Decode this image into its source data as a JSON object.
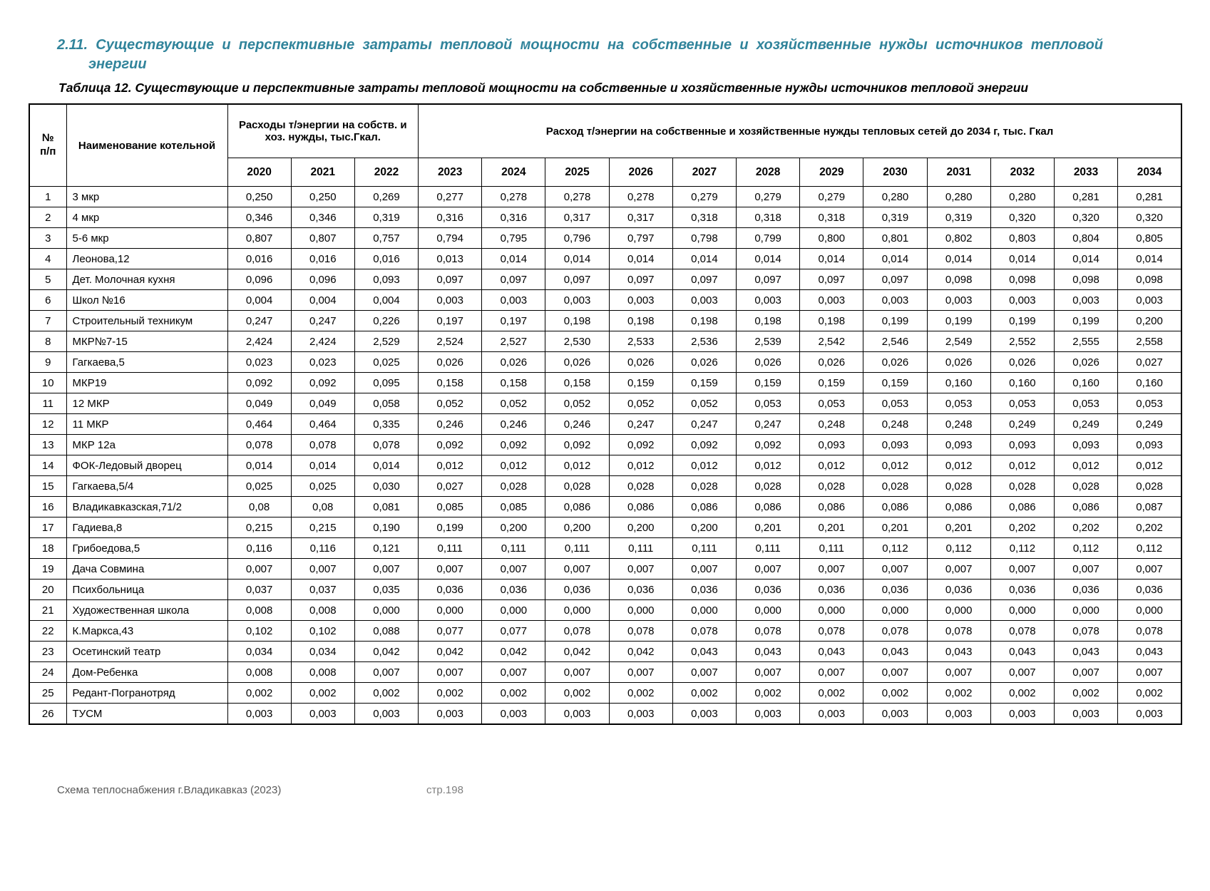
{
  "page": {
    "section_title": "2.11. Существующие и перспективные затраты тепловой мощности на собственные и хозяйственные нужды источников тепловой энергии",
    "table_caption": "Таблица 12. Существующие и перспективные затраты тепловой мощности на собственные и хозяйственные нужды источников тепловой энергии",
    "footer_left": "Схема теплоснабжения г.Владикавказ (2023)",
    "footer_page": "стр.198"
  },
  "table": {
    "col_num_header": "№\nп/п",
    "col_name_header": "Наименование котельной",
    "group1_header": "Расходы т/энергии на собств. и хоз. нужды, тыс.Гкал.",
    "group2_header": "Расход т/энергии на собственные и хозяйственные нужды тепловых сетей до 2034 г, тыс. Гкал",
    "years": [
      "2020",
      "2021",
      "2022",
      "2023",
      "2024",
      "2025",
      "2026",
      "2027",
      "2028",
      "2029",
      "2030",
      "2031",
      "2032",
      "2033",
      "2034"
    ],
    "rows": [
      {
        "num": "1",
        "name": "3 мкр",
        "values": [
          "0,250",
          "0,250",
          "0,269",
          "0,277",
          "0,278",
          "0,278",
          "0,278",
          "0,279",
          "0,279",
          "0,279",
          "0,280",
          "0,280",
          "0,280",
          "0,281",
          "0,281"
        ]
      },
      {
        "num": "2",
        "name": "4 мкр",
        "values": [
          "0,346",
          "0,346",
          "0,319",
          "0,316",
          "0,316",
          "0,317",
          "0,317",
          "0,318",
          "0,318",
          "0,318",
          "0,319",
          "0,319",
          "0,320",
          "0,320",
          "0,320"
        ]
      },
      {
        "num": "3",
        "name": "5-6 мкр",
        "values": [
          "0,807",
          "0,807",
          "0,757",
          "0,794",
          "0,795",
          "0,796",
          "0,797",
          "0,798",
          "0,799",
          "0,800",
          "0,801",
          "0,802",
          "0,803",
          "0,804",
          "0,805"
        ]
      },
      {
        "num": "4",
        "name": "Леонова,12",
        "values": [
          "0,016",
          "0,016",
          "0,016",
          "0,013",
          "0,014",
          "0,014",
          "0,014",
          "0,014",
          "0,014",
          "0,014",
          "0,014",
          "0,014",
          "0,014",
          "0,014",
          "0,014"
        ]
      },
      {
        "num": "5",
        "name": "Дет. Молочная кухня",
        "values": [
          "0,096",
          "0,096",
          "0,093",
          "0,097",
          "0,097",
          "0,097",
          "0,097",
          "0,097",
          "0,097",
          "0,097",
          "0,097",
          "0,098",
          "0,098",
          "0,098",
          "0,098"
        ]
      },
      {
        "num": "6",
        "name": "Школ №16",
        "values": [
          "0,004",
          "0,004",
          "0,004",
          "0,003",
          "0,003",
          "0,003",
          "0,003",
          "0,003",
          "0,003",
          "0,003",
          "0,003",
          "0,003",
          "0,003",
          "0,003",
          "0,003"
        ]
      },
      {
        "num": "7",
        "name": "Строительный техникум",
        "values": [
          "0,247",
          "0,247",
          "0,226",
          "0,197",
          "0,197",
          "0,198",
          "0,198",
          "0,198",
          "0,198",
          "0,198",
          "0,199",
          "0,199",
          "0,199",
          "0,199",
          "0,200"
        ]
      },
      {
        "num": "8",
        "name": "МКР№7-15",
        "values": [
          "2,424",
          "2,424",
          "2,529",
          "2,524",
          "2,527",
          "2,530",
          "2,533",
          "2,536",
          "2,539",
          "2,542",
          "2,546",
          "2,549",
          "2,552",
          "2,555",
          "2,558"
        ]
      },
      {
        "num": "9",
        "name": "Гагкаева,5",
        "values": [
          "0,023",
          "0,023",
          "0,025",
          "0,026",
          "0,026",
          "0,026",
          "0,026",
          "0,026",
          "0,026",
          "0,026",
          "0,026",
          "0,026",
          "0,026",
          "0,026",
          "0,027"
        ]
      },
      {
        "num": "10",
        "name": "МКР19",
        "values": [
          "0,092",
          "0,092",
          "0,095",
          "0,158",
          "0,158",
          "0,158",
          "0,159",
          "0,159",
          "0,159",
          "0,159",
          "0,159",
          "0,160",
          "0,160",
          "0,160",
          "0,160"
        ]
      },
      {
        "num": "11",
        "name": "12 МКР",
        "values": [
          "0,049",
          "0,049",
          "0,058",
          "0,052",
          "0,052",
          "0,052",
          "0,052",
          "0,052",
          "0,053",
          "0,053",
          "0,053",
          "0,053",
          "0,053",
          "0,053",
          "0,053"
        ]
      },
      {
        "num": "12",
        "name": "11 МКР",
        "values": [
          "0,464",
          "0,464",
          "0,335",
          "0,246",
          "0,246",
          "0,246",
          "0,247",
          "0,247",
          "0,247",
          "0,248",
          "0,248",
          "0,248",
          "0,249",
          "0,249",
          "0,249"
        ]
      },
      {
        "num": "13",
        "name": "МКР 12а",
        "values": [
          "0,078",
          "0,078",
          "0,078",
          "0,092",
          "0,092",
          "0,092",
          "0,092",
          "0,092",
          "0,092",
          "0,093",
          "0,093",
          "0,093",
          "0,093",
          "0,093",
          "0,093"
        ]
      },
      {
        "num": "14",
        "name": "ФОК-Ледовый дворец",
        "values": [
          "0,014",
          "0,014",
          "0,014",
          "0,012",
          "0,012",
          "0,012",
          "0,012",
          "0,012",
          "0,012",
          "0,012",
          "0,012",
          "0,012",
          "0,012",
          "0,012",
          "0,012"
        ]
      },
      {
        "num": "15",
        "name": "Гагкаева,5/4",
        "values": [
          "0,025",
          "0,025",
          "0,030",
          "0,027",
          "0,028",
          "0,028",
          "0,028",
          "0,028",
          "0,028",
          "0,028",
          "0,028",
          "0,028",
          "0,028",
          "0,028",
          "0,028"
        ]
      },
      {
        "num": "16",
        "name": "Владикавказская,71/2",
        "values": [
          "0,08",
          "0,08",
          "0,081",
          "0,085",
          "0,085",
          "0,086",
          "0,086",
          "0,086",
          "0,086",
          "0,086",
          "0,086",
          "0,086",
          "0,086",
          "0,086",
          "0,087"
        ]
      },
      {
        "num": "17",
        "name": "Гадиева,8",
        "values": [
          "0,215",
          "0,215",
          "0,190",
          "0,199",
          "0,200",
          "0,200",
          "0,200",
          "0,200",
          "0,201",
          "0,201",
          "0,201",
          "0,201",
          "0,202",
          "0,202",
          "0,202"
        ]
      },
      {
        "num": "18",
        "name": "Грибоедова,5",
        "values": [
          "0,116",
          "0,116",
          "0,121",
          "0,111",
          "0,111",
          "0,111",
          "0,111",
          "0,111",
          "0,111",
          "0,111",
          "0,112",
          "0,112",
          "0,112",
          "0,112",
          "0,112"
        ]
      },
      {
        "num": "19",
        "name": "Дача Совмина",
        "values": [
          "0,007",
          "0,007",
          "0,007",
          "0,007",
          "0,007",
          "0,007",
          "0,007",
          "0,007",
          "0,007",
          "0,007",
          "0,007",
          "0,007",
          "0,007",
          "0,007",
          "0,007"
        ]
      },
      {
        "num": "20",
        "name": "Психбольница",
        "values": [
          "0,037",
          "0,037",
          "0,035",
          "0,036",
          "0,036",
          "0,036",
          "0,036",
          "0,036",
          "0,036",
          "0,036",
          "0,036",
          "0,036",
          "0,036",
          "0,036",
          "0,036"
        ]
      },
      {
        "num": "21",
        "name": "Художественная школа",
        "values": [
          "0,008",
          "0,008",
          "0,000",
          "0,000",
          "0,000",
          "0,000",
          "0,000",
          "0,000",
          "0,000",
          "0,000",
          "0,000",
          "0,000",
          "0,000",
          "0,000",
          "0,000"
        ]
      },
      {
        "num": "22",
        "name": "К.Маркса,43",
        "values": [
          "0,102",
          "0,102",
          "0,088",
          "0,077",
          "0,077",
          "0,078",
          "0,078",
          "0,078",
          "0,078",
          "0,078",
          "0,078",
          "0,078",
          "0,078",
          "0,078",
          "0,078"
        ]
      },
      {
        "num": "23",
        "name": "Осетинский театр",
        "values": [
          "0,034",
          "0,034",
          "0,042",
          "0,042",
          "0,042",
          "0,042",
          "0,042",
          "0,043",
          "0,043",
          "0,043",
          "0,043",
          "0,043",
          "0,043",
          "0,043",
          "0,043"
        ]
      },
      {
        "num": "24",
        "name": "Дом-Ребенка",
        "values": [
          "0,008",
          "0,008",
          "0,007",
          "0,007",
          "0,007",
          "0,007",
          "0,007",
          "0,007",
          "0,007",
          "0,007",
          "0,007",
          "0,007",
          "0,007",
          "0,007",
          "0,007"
        ]
      },
      {
        "num": "25",
        "name": "Редант-Погранотряд",
        "values": [
          "0,002",
          "0,002",
          "0,002",
          "0,002",
          "0,002",
          "0,002",
          "0,002",
          "0,002",
          "0,002",
          "0,002",
          "0,002",
          "0,002",
          "0,002",
          "0,002",
          "0,002"
        ]
      },
      {
        "num": "26",
        "name": "ТУСМ",
        "values": [
          "0,003",
          "0,003",
          "0,003",
          "0,003",
          "0,003",
          "0,003",
          "0,003",
          "0,003",
          "0,003",
          "0,003",
          "0,003",
          "0,003",
          "0,003",
          "0,003",
          "0,003"
        ]
      }
    ]
  }
}
